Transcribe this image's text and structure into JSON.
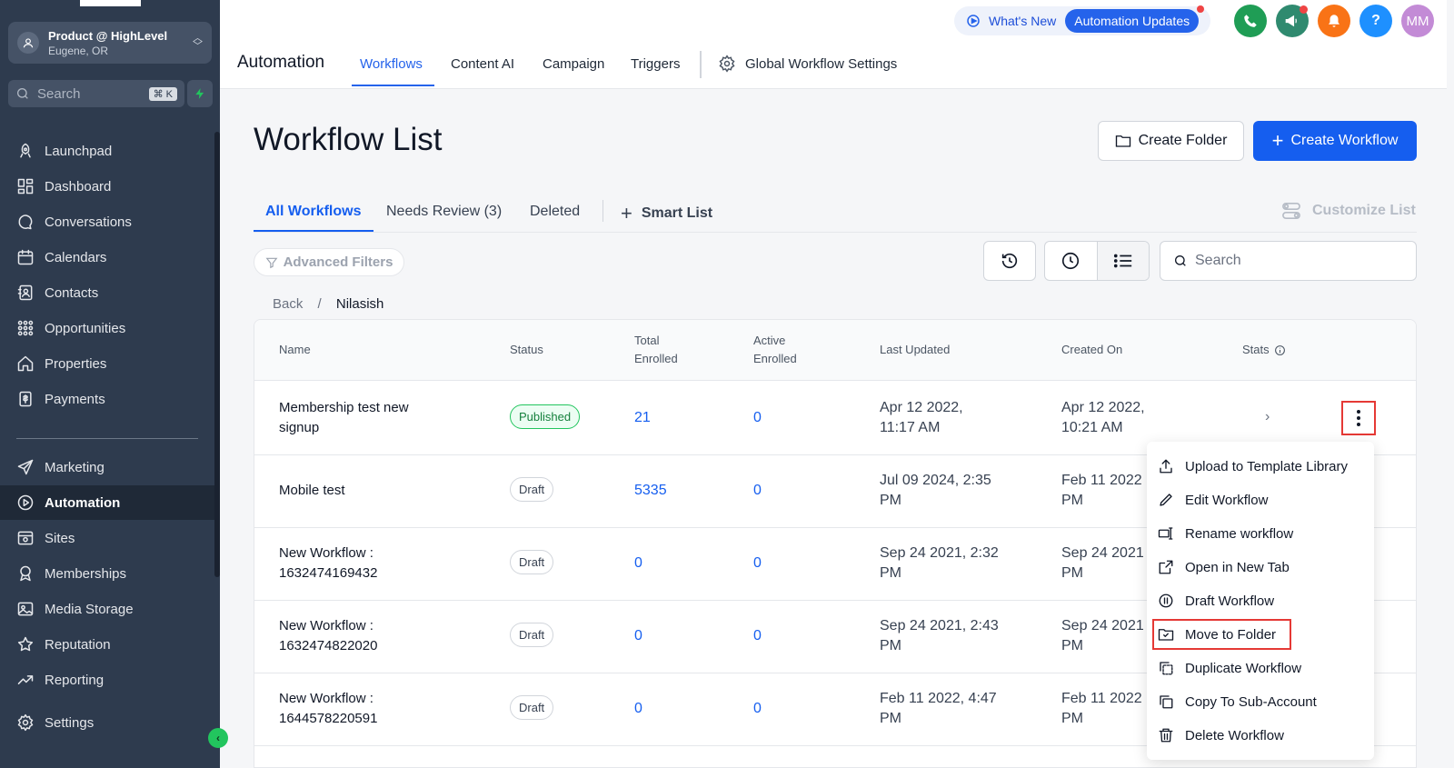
{
  "account": {
    "name": "Product @ HighLevel",
    "location": "Eugene, OR"
  },
  "sidebar_search": {
    "placeholder": "Search",
    "shortcut": "⌘ K"
  },
  "sidebar": {
    "items": [
      {
        "label": "Launchpad",
        "icon": "rocket-icon"
      },
      {
        "label": "Dashboard",
        "icon": "dashboard-grid-icon"
      },
      {
        "label": "Conversations",
        "icon": "chat-bubble-icon"
      },
      {
        "label": "Calendars",
        "icon": "calendar-icon"
      },
      {
        "label": "Contacts",
        "icon": "contacts-icon"
      },
      {
        "label": "Opportunities",
        "icon": "opportunities-icon"
      },
      {
        "label": "Properties",
        "icon": "house-icon"
      },
      {
        "label": "Payments",
        "icon": "payments-icon"
      },
      {
        "label": "Marketing",
        "icon": "paper-plane-icon"
      },
      {
        "label": "Automation",
        "icon": "automation-icon",
        "active": true
      },
      {
        "label": "Sites",
        "icon": "sites-icon"
      },
      {
        "label": "Memberships",
        "icon": "badge-icon"
      },
      {
        "label": "Media Storage",
        "icon": "image-icon"
      },
      {
        "label": "Reputation",
        "icon": "star-icon"
      },
      {
        "label": "Reporting",
        "icon": "trend-icon"
      },
      {
        "label": "Settings",
        "icon": "gear-icon"
      }
    ]
  },
  "header": {
    "whats_new": "What's New",
    "automation_updates": "Automation Updates",
    "avatar_initials": "MM",
    "help_label": "?",
    "title": "Automation",
    "tabs": [
      {
        "label": "Workflows",
        "active": true
      },
      {
        "label": "Content AI"
      },
      {
        "label": "Campaign"
      },
      {
        "label": "Triggers"
      }
    ],
    "global_settings": "Global Workflow Settings"
  },
  "page": {
    "title": "Workflow List",
    "create_folder": "Create Folder",
    "create_workflow": "Create Workflow",
    "tabs": [
      {
        "label": "All Workflows",
        "active": true
      },
      {
        "label": "Needs Review (3)"
      },
      {
        "label": "Deleted"
      }
    ],
    "smart_list": "Smart List",
    "customize_list": "Customize List",
    "advanced_filters": "Advanced Filters",
    "search_placeholder": "Search",
    "breadcrumb": {
      "back": "Back",
      "separator": "/",
      "current": "Nilasish"
    }
  },
  "table": {
    "headers": {
      "name": "Name",
      "status": "Status",
      "total_line1": "Total",
      "total_line2": "Enrolled",
      "active_line1": "Active",
      "active_line2": "Enrolled",
      "last_updated": "Last Updated",
      "created_on": "Created On",
      "stats": "Stats"
    },
    "rows": [
      {
        "name_1": "Membership test new",
        "name_2": "signup",
        "status": "Published",
        "total": "21",
        "active": "0",
        "updated_1": "Apr 12 2022,",
        "updated_2": "11:17 AM",
        "created_1": "Apr 12 2022,",
        "created_2": "10:21 AM"
      },
      {
        "name_1": "Mobile test",
        "name_2": "",
        "status": "Draft",
        "total": "5335",
        "active": "0",
        "updated_1": "Jul 09 2024, 2:35",
        "updated_2": "PM",
        "created_1": "Feb 11 2022",
        "created_2": "PM"
      },
      {
        "name_1": "New Workflow :",
        "name_2": "1632474169432",
        "status": "Draft",
        "total": "0",
        "active": "0",
        "updated_1": "Sep 24 2021, 2:32",
        "updated_2": "PM",
        "created_1": "Sep 24 2021",
        "created_2": "PM"
      },
      {
        "name_1": "New Workflow :",
        "name_2": "1632474822020",
        "status": "Draft",
        "total": "0",
        "active": "0",
        "updated_1": "Sep 24 2021, 2:43",
        "updated_2": "PM",
        "created_1": "Sep 24 2021",
        "created_2": "PM"
      },
      {
        "name_1": "New Workflow :",
        "name_2": "1644578220591",
        "status": "Draft",
        "total": "0",
        "active": "0",
        "updated_1": "Feb 11 2022, 4:47",
        "updated_2": "PM",
        "created_1": "Feb 11 2022",
        "created_2": "PM"
      }
    ]
  },
  "menu": {
    "items": [
      {
        "label": "Upload to Template Library",
        "icon": "upload-icon"
      },
      {
        "label": "Edit Workflow",
        "icon": "pencil-icon"
      },
      {
        "label": "Rename workflow",
        "icon": "rename-icon"
      },
      {
        "label": "Open in New Tab",
        "icon": "external-link-icon"
      },
      {
        "label": "Draft Workflow",
        "icon": "pause-circle-icon"
      },
      {
        "label": "Move to Folder",
        "icon": "folder-move-icon",
        "highlighted": true
      },
      {
        "label": "Duplicate Workflow",
        "icon": "duplicate-icon"
      },
      {
        "label": "Copy To Sub-Account",
        "icon": "copy-icon"
      },
      {
        "label": "Delete Workflow",
        "icon": "trash-icon"
      }
    ]
  },
  "colors": {
    "accent": "#155eef",
    "sidebar": "#2e3b4e",
    "highlight": "#e53935",
    "published": "#22c55e"
  }
}
